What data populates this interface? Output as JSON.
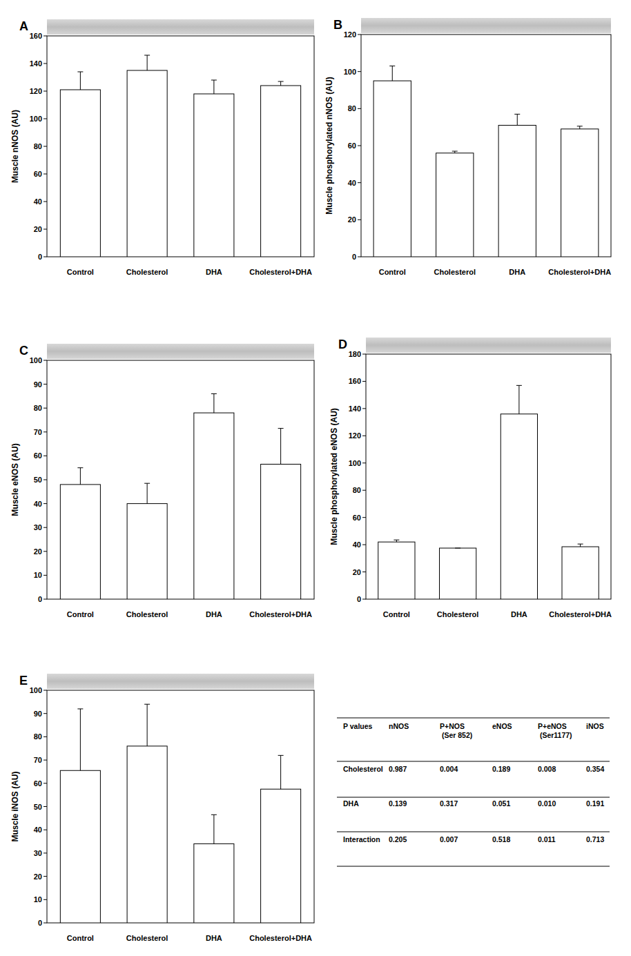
{
  "chart_data": [
    {
      "type": "bar",
      "title": "A",
      "y_label": "Muscle nNOS (AU)",
      "categories": [
        "Control",
        "Cholesterol",
        "DHA",
        "Cholesterol+DHA"
      ],
      "values": [
        121,
        135,
        118,
        124
      ],
      "errors": [
        13,
        11,
        10,
        3
      ],
      "color": "#ffffff",
      "ylim": [
        0,
        160
      ],
      "yticks": [
        0,
        20,
        40,
        60,
        80,
        100,
        120,
        140,
        160
      ],
      "grid": false
    },
    {
      "type": "bar",
      "title": "B",
      "y_label": "Muscle phosphorylated nNOS (AU)",
      "categories": [
        "Control",
        "Cholesterol",
        "DHA",
        "Cholesterol+DHA"
      ],
      "values": [
        95,
        56,
        71,
        69
      ],
      "errors": [
        8,
        1,
        6,
        1.5
      ],
      "color": "#ffffff",
      "ylim": [
        0,
        120
      ],
      "yticks": [
        0,
        20,
        40,
        60,
        80,
        100,
        120
      ],
      "grid": false
    },
    {
      "type": "bar",
      "title": "C",
      "y_label": "Muscle eNOS (AU)",
      "categories": [
        "Control",
        "Cholesterol",
        "DHA",
        "Cholesterol+DHA"
      ],
      "values": [
        48,
        40,
        78,
        56.5
      ],
      "errors": [
        7,
        8.5,
        8,
        15
      ],
      "color": "#ffffff",
      "ylim": [
        0,
        100
      ],
      "yticks": [
        0,
        10,
        20,
        30,
        40,
        50,
        60,
        70,
        80,
        90,
        100
      ],
      "grid": false
    },
    {
      "type": "bar",
      "title": "D",
      "y_label": "Muscle phosphorylated eNOS (AU)",
      "categories": [
        "Control",
        "Cholesterol",
        "DHA",
        "Cholesterol+DHA"
      ],
      "values": [
        42,
        37.5,
        136,
        38.5
      ],
      "errors": [
        1.5,
        0,
        21,
        2
      ],
      "color": "#ffffff",
      "ylim": [
        0,
        180
      ],
      "yticks": [
        0,
        20,
        40,
        60,
        80,
        100,
        120,
        140,
        160,
        180
      ],
      "grid": false
    },
    {
      "type": "bar",
      "title": "E",
      "y_label": "Muscle iNOS (AU)",
      "categories": [
        "Control",
        "Cholesterol",
        "DHA",
        "Cholesterol+DHA"
      ],
      "values": [
        65.5,
        76,
        34,
        57.5
      ],
      "errors": [
        26.5,
        18,
        12.5,
        14.5
      ],
      "color": "#ffffff",
      "ylim": [
        0,
        100
      ],
      "yticks": [
        0,
        10,
        20,
        30,
        40,
        50,
        60,
        70,
        80,
        90,
        100
      ],
      "grid": false
    }
  ],
  "table": {
    "header": [
      "P values",
      "nNOS",
      "P+NOS (Ser 852)",
      "eNOS",
      "P+eNOS (Ser1177)",
      "iNOS"
    ],
    "rows": [
      [
        "Cholesterol",
        "0.987",
        "0.004",
        "0.189",
        "0.008",
        "0.354"
      ],
      [
        "DHA",
        "0.139",
        "0.317",
        "0.051",
        "0.010",
        "0.191"
      ],
      [
        "Interaction",
        "0.205",
        "0.007",
        "0.518",
        "0.011",
        "0.713"
      ]
    ]
  }
}
